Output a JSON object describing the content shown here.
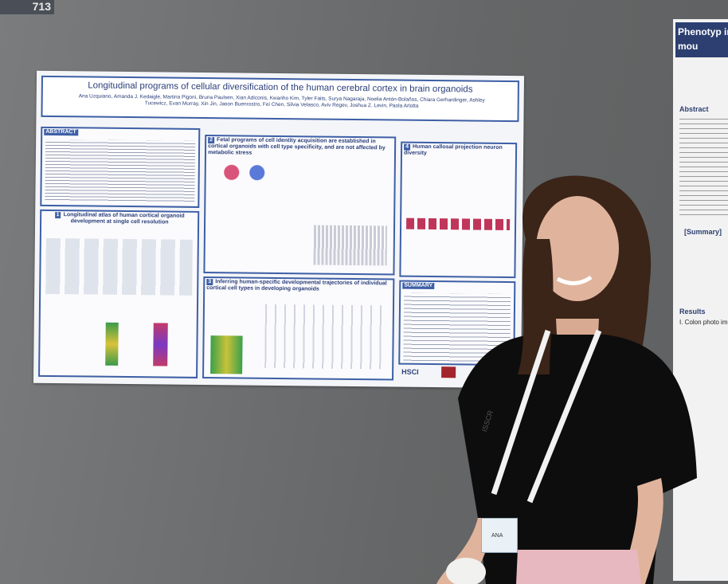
{
  "board": {
    "number": "713"
  },
  "poster": {
    "title": "Longitudinal programs of cellular diversification of the human cerebral cortex in brain organoids",
    "authors": "Ana Uzquiano, Amanda J. Kedaigle, Martina Pigoni, Bruna Paulsen, Xian Adiconis, Kwanho Kim, Tyler Faits, Surya Nagaraja, Noelia Antón-Bolaños, Chiara Gerhardinger, Ashley Tucewicz, Evan Murray, Xin Jin, Jason Buenrostro, Fei Chen, Silvia Velasco, Aviv Regev, Joshua Z. Levin, Paola Arlotta",
    "sections": [
      {
        "number": "",
        "heading": "ABSTRACT"
      },
      {
        "number": "1",
        "heading": "Longitudinal atlas of human cortical organoid development at single cell resolution"
      },
      {
        "number": "2",
        "heading": "Fetal programs of cell identity acquisition are established in cortical organoids with cell type specificity, and are not affected by metabolic stress"
      },
      {
        "number": "3",
        "heading": "Inferring human-specific developmental trajectories of individual cortical cell types in developing organoids"
      },
      {
        "number": "4",
        "heading": "Human callosal projection neuron diversity"
      },
      {
        "number": "",
        "heading": "SUMMARY"
      }
    ],
    "logo": "HSCI"
  },
  "side_poster": {
    "title": "Phenotyp in mou",
    "headings": [
      "Abstract",
      "[Summary]",
      "Results",
      "I. Colon photo im"
    ]
  },
  "lanyard": {
    "text": "ISSCR",
    "badge": "ANA"
  }
}
